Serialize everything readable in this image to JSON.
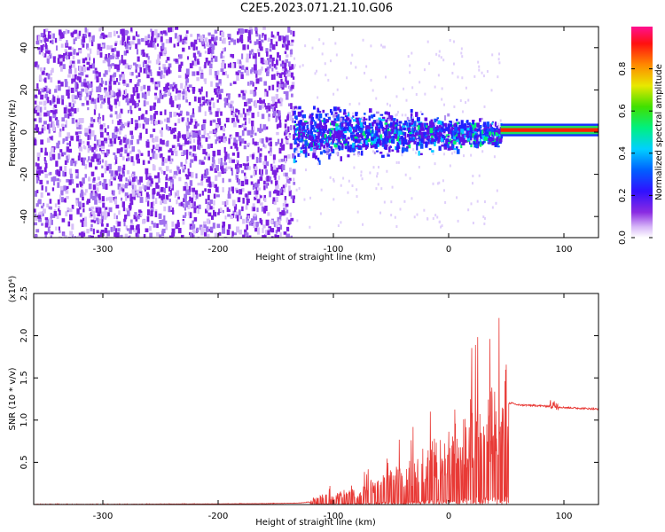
{
  "title": "C2E5.2023.071.21.10.G06",
  "chart_data": [
    {
      "type": "heatmap",
      "xlabel": "Height of straight line (km)",
      "ylabel": "Frequency (Hz)",
      "xlim": [
        -360,
        130
      ],
      "ylim": [
        -50,
        50
      ],
      "xticks": [
        -300,
        -200,
        -100,
        0,
        100
      ],
      "yticks": [
        -40,
        -20,
        0,
        20,
        40
      ],
      "colorbar": {
        "label": "Normalized spectral amplitude",
        "range": [
          0,
          1
        ],
        "ticks": [
          "0.0",
          "0.2",
          "0.4",
          "0.6",
          "0.8"
        ]
      },
      "regions": [
        {
          "x": [
            -360,
            -135
          ],
          "freq_range": [
            -50,
            50
          ],
          "amplitude": 0.1
        },
        {
          "x": [
            -135,
            45
          ],
          "freq_range": [
            -20,
            20
          ],
          "amplitude": 0.2
        },
        {
          "x": [
            45,
            130
          ],
          "freq_center": 1,
          "freq_halfwidth": 3,
          "amplitude": 0.85
        }
      ]
    },
    {
      "type": "line",
      "xlabel": "Height of straight line (km)",
      "ylabel": "SNR (10 * v/v)",
      "y_scale_label": "(x10⁴)",
      "xlim": [
        -360,
        130
      ],
      "ylim": [
        0,
        2.5
      ],
      "xticks": [
        -300,
        -200,
        -100,
        0,
        100
      ],
      "yticks": [
        "0.5",
        "1.0",
        "1.5",
        "2.0",
        "2.5"
      ],
      "series": [
        {
          "color": "#e83a36",
          "x": [
            -360,
            -300,
            -200,
            -150,
            -130,
            -110,
            -100,
            -80,
            -60,
            -40,
            -20,
            0,
            20,
            40,
            50,
            55,
            60,
            80,
            90,
            100,
            130
          ],
          "y": [
            0.0,
            0.0,
            0.01,
            0.02,
            0.03,
            0.08,
            0.1,
            0.15,
            0.25,
            0.35,
            0.5,
            0.65,
            0.8,
            1.0,
            1.2,
            1.2,
            1.18,
            1.17,
            1.16,
            1.15,
            1.13
          ]
        }
      ]
    }
  ],
  "colors": {
    "scatter": "#7b1fe0",
    "line": "#e83a36",
    "background": "#ffffff"
  }
}
